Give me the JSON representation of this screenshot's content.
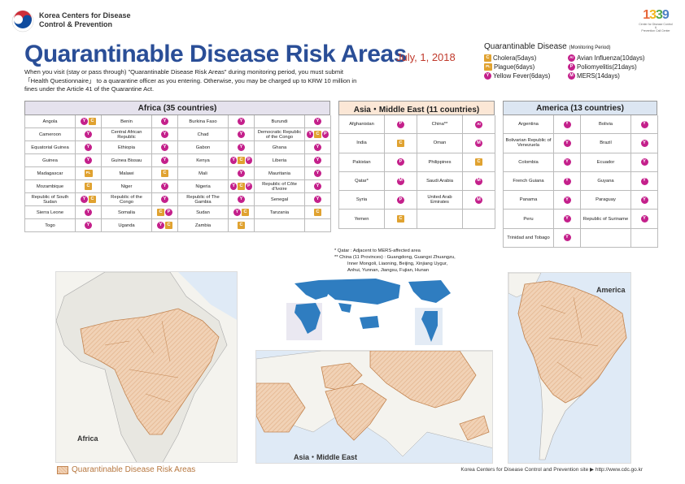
{
  "header": {
    "org_line1": "Korea Centers for Disease",
    "org_line2": "Control & Prevention",
    "badge_number": [
      "1",
      "3",
      "3",
      "9"
    ],
    "badge_sub1": "Center for Disease Control &",
    "badge_sub2": "Prevention Call Center",
    "title": "Quarantinable Disease Risk Areas",
    "date": "July, 1, 2018",
    "intro": [
      "When you visit (stay or pass through) \"Quarantinable Disease Risk Areas\" during monitoring period, you must submit",
      "「Health Questionnaire」 to a quarantine officer as you entering. Otherwise, you may be charged up to KRW 10 million in",
      "fines under the Article 41 of the Quarantine Act."
    ]
  },
  "disease_legend": {
    "title": "Quarantinable Disease",
    "subtitle": "(Monitoring Period)",
    "items": [
      {
        "code": "C",
        "label": "Cholera(5days)",
        "shape": "sq"
      },
      {
        "code": "AI",
        "label": "Avian Influenza(10days)",
        "shape": "circle"
      },
      {
        "code": "PL",
        "label": "Plague(6days)",
        "shape": "sq"
      },
      {
        "code": "P",
        "label": "Poliomyelitis(21days)",
        "shape": "circle"
      },
      {
        "code": "Y",
        "label": "Yellow Fever(6days)",
        "shape": "circle"
      },
      {
        "code": "M",
        "label": "MERS(14days)",
        "shape": "circle"
      }
    ]
  },
  "africa": {
    "title": "Africa (35 countries)",
    "rows": [
      [
        [
          "Angola",
          [
            "Y",
            "C"
          ]
        ],
        [
          "Benin",
          [
            "Y"
          ]
        ],
        [
          "Burkina Faso",
          [
            "Y"
          ]
        ],
        [
          "Burundi",
          [
            "Y"
          ]
        ]
      ],
      [
        [
          "Cameroon",
          [
            "Y"
          ]
        ],
        [
          "Central African Republic",
          [
            "Y"
          ]
        ],
        [
          "Chad",
          [
            "Y"
          ]
        ],
        [
          "Democratic Republic of the Congo",
          [
            "Y",
            "C",
            "P"
          ]
        ]
      ],
      [
        [
          "Equatorial Guinea",
          [
            "Y"
          ]
        ],
        [
          "Ethiopia",
          [
            "Y"
          ]
        ],
        [
          "Gabon",
          [
            "Y"
          ]
        ],
        [
          "Ghana",
          [
            "Y"
          ]
        ]
      ],
      [
        [
          "Guinea",
          [
            "Y"
          ]
        ],
        [
          "Guinea Bissau",
          [
            "Y"
          ]
        ],
        [
          "Kenya",
          [
            "Y",
            "C",
            "P"
          ]
        ],
        [
          "Liberia",
          [
            "Y"
          ]
        ]
      ],
      [
        [
          "Madagascar",
          [
            "PL"
          ]
        ],
        [
          "Malawi",
          [
            "C"
          ]
        ],
        [
          "Mali",
          [
            "Y"
          ]
        ],
        [
          "Mauritania",
          [
            "Y"
          ]
        ]
      ],
      [
        [
          "Mozambique",
          [
            "C"
          ]
        ],
        [
          "Niger",
          [
            "Y"
          ]
        ],
        [
          "Nigeria",
          [
            "Y",
            "C",
            "P"
          ]
        ],
        [
          "Republic of Côte d'Ivoire",
          [
            "Y"
          ]
        ]
      ],
      [
        [
          "Republic of South Sudan",
          [
            "Y",
            "C"
          ]
        ],
        [
          "Republic of the Congo",
          [
            "Y"
          ]
        ],
        [
          "Republic of The Gambia",
          [
            "Y"
          ]
        ],
        [
          "Senegal",
          [
            "Y"
          ]
        ]
      ],
      [
        [
          "Sierra Leone",
          [
            "Y"
          ]
        ],
        [
          "Somalia",
          [
            "C",
            "P"
          ]
        ],
        [
          "Sudan",
          [
            "Y",
            "C"
          ]
        ],
        [
          "Tanzania",
          [
            "C"
          ]
        ]
      ],
      [
        [
          "Togo",
          [
            "Y"
          ]
        ],
        [
          "Uganda",
          [
            "Y",
            "C"
          ]
        ],
        [
          "Zambia",
          [
            "C"
          ]
        ],
        [
          "",
          []
        ]
      ]
    ]
  },
  "asia": {
    "title": "Asia・Middle East (11 countries)",
    "rows": [
      [
        [
          "Afghanistan",
          [
            "P"
          ]
        ],
        [
          "China**",
          [
            "AI"
          ]
        ]
      ],
      [
        [
          "India",
          [
            "C"
          ]
        ],
        [
          "Oman",
          [
            "M"
          ]
        ]
      ],
      [
        [
          "Pakistan",
          [
            "P"
          ]
        ],
        [
          "Philippines",
          [
            "C"
          ]
        ]
      ],
      [
        [
          "Qatar*",
          [
            "M"
          ]
        ],
        [
          "Saudi Arabia",
          [
            "M"
          ]
        ]
      ],
      [
        [
          "Syria",
          [
            "P"
          ]
        ],
        [
          "United Arab Emirates",
          [
            "M"
          ]
        ]
      ],
      [
        [
          "Yemen",
          [
            "C"
          ]
        ],
        [
          "",
          []
        ]
      ]
    ]
  },
  "america": {
    "title": "America (13 countries)",
    "rows": [
      [
        [
          "Argentina",
          [
            "Y"
          ]
        ],
        [
          "Bolivia",
          [
            "Y"
          ]
        ]
      ],
      [
        [
          "Bolivarian Republic of Venezuela",
          [
            "Y"
          ]
        ],
        [
          "Brazil",
          [
            "Y"
          ]
        ]
      ],
      [
        [
          "Colombia",
          [
            "Y"
          ]
        ],
        [
          "Ecuador",
          [
            "Y"
          ]
        ]
      ],
      [
        [
          "French Guiana",
          [
            "Y"
          ]
        ],
        [
          "Guyana",
          [
            "Y"
          ]
        ]
      ],
      [
        [
          "Panama",
          [
            "Y"
          ]
        ],
        [
          "Paraguay",
          [
            "Y"
          ]
        ]
      ],
      [
        [
          "Peru",
          [
            "Y"
          ]
        ],
        [
          "Republic of Suriname",
          [
            "Y"
          ]
        ]
      ],
      [
        [
          "Trinidad and Tobago",
          [
            "Y"
          ]
        ],
        [
          "",
          []
        ]
      ]
    ]
  },
  "footnotes": [
    "* Qatar : Adjacent to MERS-affected area",
    "** China (11 Provinces) : Guangdong, Guangxi Zhuangzu,",
    "Inner Mongoli, Liaoning, Beijing, Xinjiang Uygur,",
    "Anhui, Yunnan, Jiangsu, Fujian, Hunan"
  ],
  "maps": {
    "africa_label": "Africa",
    "asia_label": "Asia・Middle East",
    "america_label": "America"
  },
  "bottom": {
    "legend_label": "Quarantinable Disease Risk Areas",
    "source": "Korea Centers for Disease Control and Prevention site ▶ http://www.cdc.go.kr"
  },
  "colors": {
    "title_blue": "#2a4e97",
    "date_red": "#c0392b",
    "code_magenta": "#c4208b",
    "code_orange": "#e0a230",
    "risk_fill": "#f1d2b6",
    "africa_header": "#e5e2ed",
    "asia_header": "#fbe7d6",
    "america_header": "#dce6f2"
  }
}
